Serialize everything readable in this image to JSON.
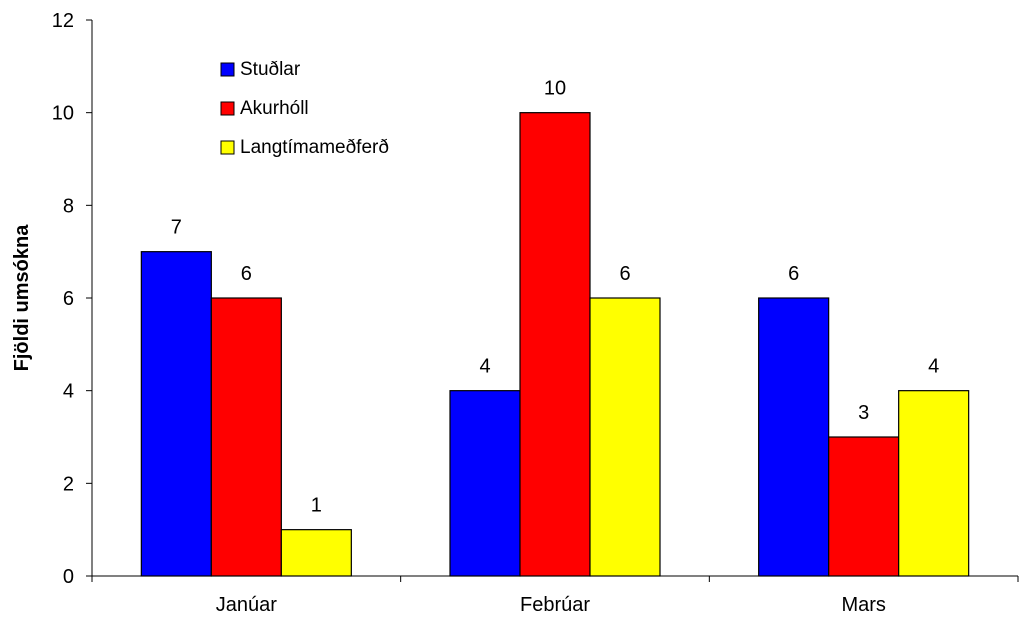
{
  "chart_data": {
    "type": "bar",
    "title": "",
    "xlabel": "",
    "ylabel": "Fjöldi umsókna",
    "categories": [
      "Janúar",
      "Febrúar",
      "Mars"
    ],
    "series": [
      {
        "name": "Stuðlar",
        "color": "#0000ff",
        "values": [
          7,
          4,
          6
        ]
      },
      {
        "name": "Akurhóll",
        "color": "#ff0000",
        "values": [
          6,
          10,
          3
        ]
      },
      {
        "name": "Langtímameðferð",
        "color": "#ffff00",
        "values": [
          1,
          6,
          4
        ]
      }
    ],
    "ylim": [
      0,
      12
    ],
    "yticks": [
      0,
      2,
      4,
      6,
      8,
      10,
      12
    ],
    "grid": false,
    "legend_position": "top-left",
    "data_labels": true
  }
}
